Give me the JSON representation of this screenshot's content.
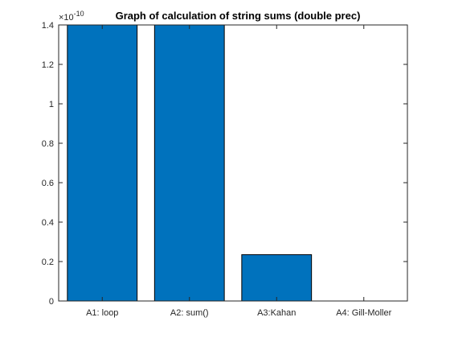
{
  "chart_data": {
    "type": "bar",
    "title": "Graph of calculation of string sums (double prec)",
    "xlabel": "",
    "ylabel": "",
    "y_exponent_base": "×10",
    "y_exponent_power": "-10",
    "categories": [
      "A1: loop",
      "A2: sum()",
      "A3:Kahan",
      "A4: Gill-Moller"
    ],
    "values": [
      1.4,
      1.4,
      0.235,
      0.0
    ],
    "values_unit_scale": "1e-10",
    "ylim": [
      0,
      1.4
    ],
    "yticks": [
      0,
      0.2,
      0.4,
      0.6,
      0.8,
      1,
      1.2,
      1.4
    ],
    "ytick_labels": [
      "0",
      "0.2",
      "0.4",
      "0.6",
      "0.8",
      "1",
      "1.2",
      "1.4"
    ],
    "bar_color": "#0072BD",
    "grid": false,
    "box": true
  }
}
